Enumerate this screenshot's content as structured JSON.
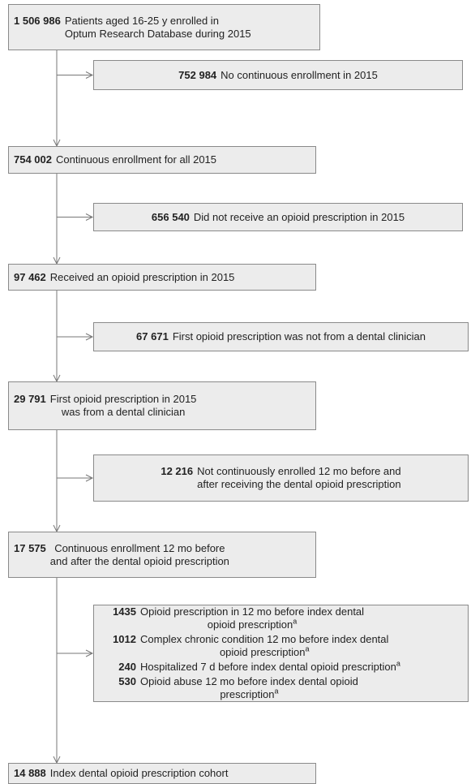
{
  "steps": [
    {
      "count": "1 506 986",
      "lines": [
        "Patients aged 16-25 y enrolled in",
        "Optum Research Database during 2015"
      ]
    },
    {
      "count": "754 002",
      "lines": [
        "Continuous enrollment for all 2015"
      ]
    },
    {
      "count": "97 462",
      "lines": [
        "Received an opioid prescription in 2015"
      ]
    },
    {
      "count": "29 791",
      "lines": [
        "First opioid prescription in 2015",
        "was from a dental clinician"
      ]
    },
    {
      "count": "17 575",
      "lines": [
        "Continuous enrollment 12 mo before",
        "and after the dental opioid prescription"
      ]
    },
    {
      "count": "14 888",
      "lines": [
        "Index dental opioid prescription cohort"
      ]
    }
  ],
  "exclusions": [
    {
      "items": [
        {
          "count": "752 984",
          "lines": [
            "No continuous enrollment in 2015"
          ]
        }
      ]
    },
    {
      "items": [
        {
          "count": "656 540",
          "lines": [
            "Did not receive an opioid prescription in 2015"
          ]
        }
      ]
    },
    {
      "items": [
        {
          "count": "67 671",
          "lines": [
            "First opioid prescription was not from a dental clinician"
          ]
        }
      ]
    },
    {
      "items": [
        {
          "count": "12 216",
          "lines": [
            "Not continuously enrolled 12 mo before and",
            "after receiving the dental opioid prescription"
          ]
        }
      ]
    },
    {
      "items": [
        {
          "count": "1435",
          "lines": [
            "Opioid prescription in 12 mo before index dental",
            "opioid prescription"
          ],
          "note": "a"
        },
        {
          "count": "1012",
          "lines": [
            "Complex chronic condition 12 mo before index dental",
            "opioid prescription"
          ],
          "note": "a"
        },
        {
          "count": "240",
          "lines": [
            "Hospitalized 7 d before index dental opioid prescription"
          ],
          "note": "a"
        },
        {
          "count": "530",
          "lines": [
            "Opioid abuse 12 mo before index dental opioid",
            "prescription"
          ],
          "note": "a"
        }
      ]
    }
  ]
}
